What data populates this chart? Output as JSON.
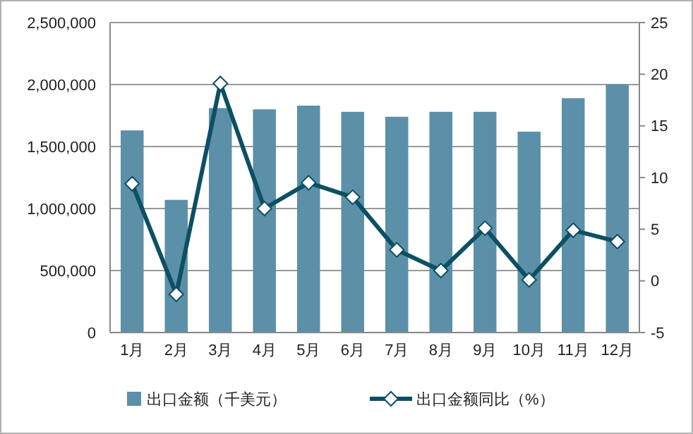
{
  "chart_data": {
    "type": "bar",
    "categories": [
      "1月",
      "2月",
      "3月",
      "4月",
      "5月",
      "6月",
      "7月",
      "8月",
      "9月",
      "10月",
      "11月",
      "12月"
    ],
    "series": [
      {
        "name": "出口金额（千美元）",
        "color": "#5b90a8",
        "values": [
          1630000,
          1070000,
          1810000,
          1800000,
          1830000,
          1780000,
          1740000,
          1780000,
          1780000,
          1620000,
          1890000,
          2000000
        ]
      },
      {
        "name": "出口金额同比（%）",
        "type": "line",
        "axis": "y2",
        "color": "#0d4f63",
        "values": [
          9.4,
          -1.3,
          19.1,
          7.0,
          9.5,
          8.1,
          3.0,
          1.0,
          5.1,
          0.1,
          4.9,
          3.8
        ]
      }
    ],
    "ylim": [
      0,
      2500000
    ],
    "yticks": [
      {
        "value": 0,
        "label": "0"
      },
      {
        "value": 500000,
        "label": "500,000"
      },
      {
        "value": 1000000,
        "label": "1,000,000"
      },
      {
        "value": 1500000,
        "label": "1,500,000"
      },
      {
        "value": 2000000,
        "label": "2,000,000"
      },
      {
        "value": 2500000,
        "label": "2,500,000"
      }
    ],
    "y2lim": [
      -5,
      25
    ],
    "y2ticks": [
      -5,
      0,
      5,
      10,
      15,
      20,
      25
    ],
    "grid": "y",
    "legend": "bottom",
    "marker": "diamond"
  }
}
